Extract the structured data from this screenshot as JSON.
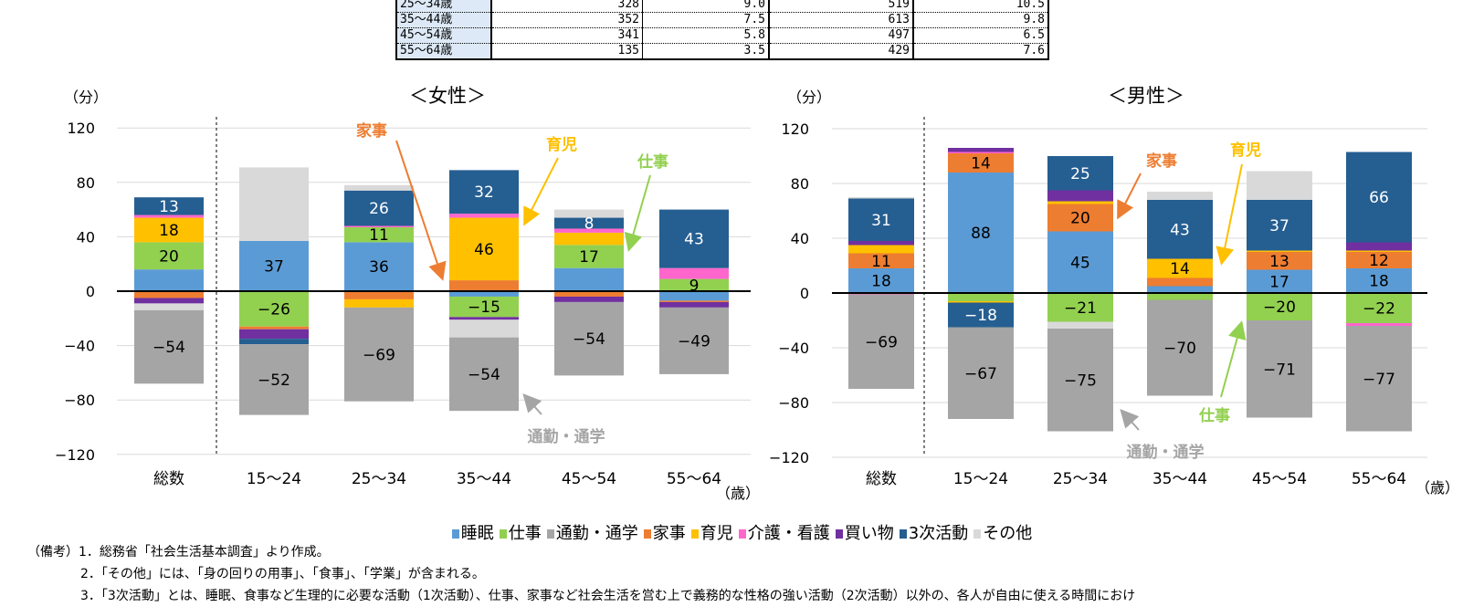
{
  "table": {
    "rows": [
      {
        "label": "25～34歳",
        "v1": "328",
        "v2": "9.0",
        "v3": "519",
        "v4": "10.5"
      },
      {
        "label": "35～44歳",
        "v1": "352",
        "v2": "7.5",
        "v3": "613",
        "v4": "9.8"
      },
      {
        "label": "45～54歳",
        "v1": "341",
        "v2": "5.8",
        "v3": "497",
        "v4": "6.5"
      },
      {
        "label": "55～64歳",
        "v1": "135",
        "v2": "3.5",
        "v3": "429",
        "v4": "7.6"
      }
    ]
  },
  "chart_data": [
    {
      "type": "bar",
      "stacked": true,
      "title": "＜女性＞",
      "ylabel": "（分）",
      "xlabel": "（歳）",
      "ylim": [
        -120,
        120
      ],
      "yticks": [
        120,
        80,
        40,
        0,
        -40,
        -80,
        -120
      ],
      "grid": true,
      "categories": [
        "総数",
        "15～24",
        "25～34",
        "35～44",
        "45～54",
        "55～64"
      ],
      "series": [
        {
          "name": "睡眠",
          "color": "#5B9BD5",
          "values": [
            16,
            37,
            36,
            -4,
            17,
            -7
          ],
          "labels": [
            null,
            "37",
            "36",
            null,
            null,
            null
          ]
        },
        {
          "name": "仕事",
          "color": "#92D050",
          "values": [
            20,
            -26,
            11,
            -15,
            17,
            9
          ],
          "labels": [
            "20",
            "−26",
            "11",
            "−15",
            "17",
            "9"
          ]
        },
        {
          "name": "通勤・通学",
          "color": "#A5A5A5",
          "values": [
            -54,
            -52,
            -69,
            -54,
            -54,
            -49
          ],
          "labels": [
            "−54",
            "−52",
            "−69",
            "−54",
            "−54",
            "−49"
          ]
        },
        {
          "name": "家事",
          "color": "#ED7D31",
          "values": [
            -5,
            -2,
            -6,
            8,
            -4,
            -1
          ],
          "labels": [
            null,
            null,
            null,
            null,
            null,
            null
          ]
        },
        {
          "name": "育児",
          "color": "#FFC000",
          "values": [
            18,
            0,
            -6,
            46,
            9,
            0
          ],
          "labels": [
            "18",
            null,
            null,
            "46",
            null,
            null
          ]
        },
        {
          "name": "介護・看護",
          "color": "#FF66CC",
          "values": [
            2,
            0,
            1,
            3,
            3,
            8
          ],
          "labels": [
            null,
            null,
            null,
            null,
            null,
            null
          ]
        },
        {
          "name": "買い物",
          "color": "#7030A0",
          "values": [
            -4,
            -7,
            0,
            -2,
            -4,
            -4
          ],
          "labels": [
            null,
            null,
            null,
            null,
            null,
            null
          ]
        },
        {
          "name": "3次活動",
          "color": "#255E91",
          "values": [
            13,
            -4,
            26,
            32,
            8,
            43
          ],
          "labels": [
            "13",
            null,
            "26",
            "32",
            "8",
            "43"
          ]
        },
        {
          "name": "その他",
          "color": "#D9D9D9",
          "values": [
            -5,
            54,
            4,
            -13,
            6,
            0
          ],
          "labels": [
            null,
            null,
            null,
            null,
            null,
            null
          ]
        }
      ],
      "annotations": [
        {
          "text": "家事",
          "color": "#ED7D31"
        },
        {
          "text": "育児",
          "color": "#FFC000"
        },
        {
          "text": "仕事",
          "color": "#92D050"
        },
        {
          "text": "通勤・通学",
          "color": "#A5A5A5"
        }
      ]
    },
    {
      "type": "bar",
      "stacked": true,
      "title": "＜男性＞",
      "ylabel": "（分）",
      "xlabel": "（歳）",
      "ylim": [
        -120,
        120
      ],
      "yticks": [
        120,
        80,
        40,
        0,
        -40,
        -80,
        -120
      ],
      "grid": true,
      "categories": [
        "総数",
        "15～24",
        "25～34",
        "35～44",
        "45～54",
        "55～64"
      ],
      "series": [
        {
          "name": "睡眠",
          "color": "#5B9BD5",
          "values": [
            18,
            88,
            45,
            5,
            17,
            18
          ],
          "labels": [
            "18",
            "88",
            "45",
            null,
            "17",
            "18"
          ]
        },
        {
          "name": "仕事",
          "color": "#92D050",
          "values": [
            0,
            -6,
            -21,
            -5,
            -20,
            -22
          ],
          "labels": [
            null,
            null,
            "−21",
            null,
            "−20",
            "−22"
          ]
        },
        {
          "name": "通勤・通学",
          "color": "#A5A5A5",
          "values": [
            -69,
            -67,
            -75,
            -70,
            -71,
            -77
          ],
          "labels": [
            "−69",
            "−67",
            "−75",
            "−70",
            "−71",
            "−77"
          ]
        },
        {
          "name": "家事",
          "color": "#ED7D31",
          "values": [
            11,
            14,
            20,
            6,
            13,
            12
          ],
          "labels": [
            "11",
            "14",
            "20",
            null,
            "13",
            "12"
          ]
        },
        {
          "name": "育児",
          "color": "#FFC000",
          "values": [
            6,
            -1,
            2,
            14,
            1,
            1
          ],
          "labels": [
            null,
            null,
            null,
            "14",
            null,
            null
          ]
        },
        {
          "name": "介護・看護",
          "color": "#FF66CC",
          "values": [
            -1,
            1,
            0,
            0,
            0,
            -2
          ],
          "labels": [
            null,
            null,
            null,
            null,
            null,
            null
          ]
        },
        {
          "name": "買い物",
          "color": "#7030A0",
          "values": [
            3,
            3,
            8,
            0,
            0,
            6
          ],
          "labels": [
            null,
            null,
            null,
            null,
            null,
            null
          ]
        },
        {
          "name": "3次活動",
          "color": "#255E91",
          "values": [
            31,
            -18,
            25,
            43,
            37,
            66
          ],
          "labels": [
            "31",
            "−18",
            "25",
            "43",
            "37",
            "66"
          ]
        },
        {
          "name": "その他",
          "color": "#D9D9D9",
          "values": [
            1,
            0,
            -5,
            6,
            21,
            0
          ],
          "labels": [
            null,
            null,
            null,
            null,
            null,
            null
          ]
        }
      ],
      "annotations": [
        {
          "text": "家事",
          "color": "#ED7D31"
        },
        {
          "text": "育児",
          "color": "#FFC000"
        },
        {
          "text": "仕事",
          "color": "#92D050"
        },
        {
          "text": "通勤・通学",
          "color": "#A5A5A5"
        }
      ]
    }
  ],
  "legend": [
    "睡眠",
    "仕事",
    "通勤・通学",
    "家事",
    "育児",
    "介護・看護",
    "買い物",
    "3次活動",
    "その他"
  ],
  "notes": [
    "（備考）1．総務省「社会生活基本調査」より作成。",
    "2．「その他」には、「身の回りの用事」、「食事」、「学業」が含まれる。",
    "3．「3次活動」とは、睡眠、食事など生理的に必要な活動（1次活動）、仕事、家事など社会生活を営む上で義務的な性格の強い活動（2次活動）以外の、各人が自由に使える時間におけ"
  ]
}
